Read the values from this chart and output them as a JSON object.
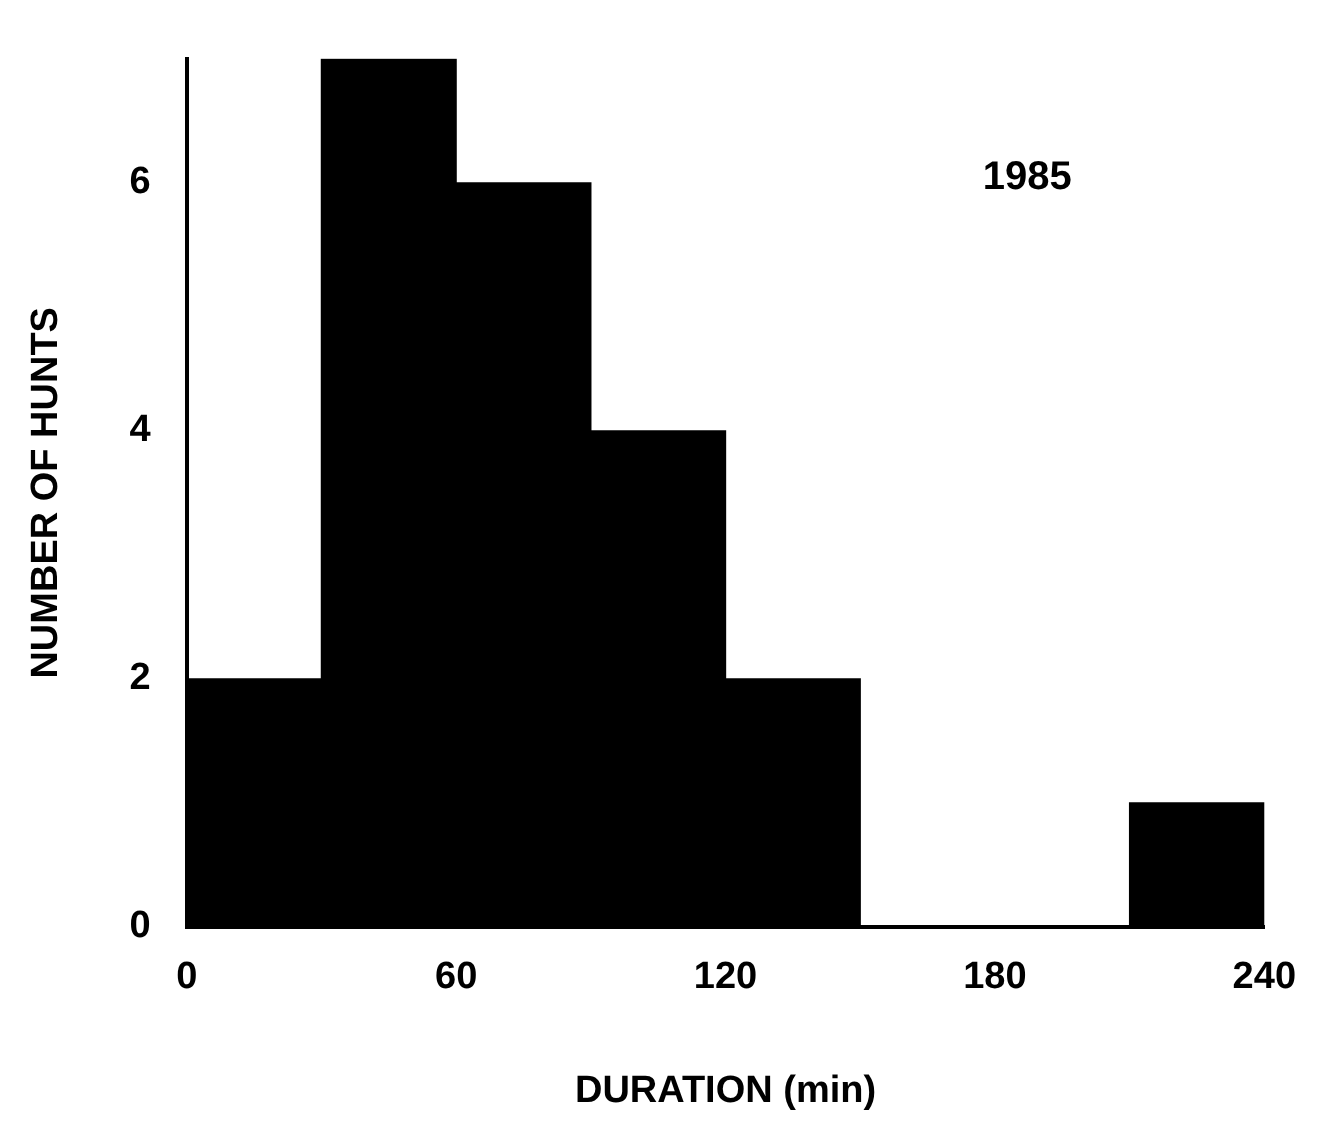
{
  "chart_data": {
    "type": "histogram",
    "xlabel": "DURATION (min)",
    "ylabel": "NUMBER OF HUNTS",
    "bins": [
      0,
      30,
      60,
      90,
      120,
      150,
      180,
      210,
      240
    ],
    "values": [
      2,
      7,
      6,
      4,
      2,
      0,
      0,
      1
    ],
    "color": "#000000",
    "xlim": [
      0,
      240
    ],
    "xticks": [
      0,
      60,
      120,
      180,
      240
    ],
    "ylim": [
      0,
      7
    ],
    "yticks": [
      0,
      2,
      4,
      6
    ],
    "grid": false,
    "legend": false,
    "annotations": [
      "1985"
    ]
  }
}
